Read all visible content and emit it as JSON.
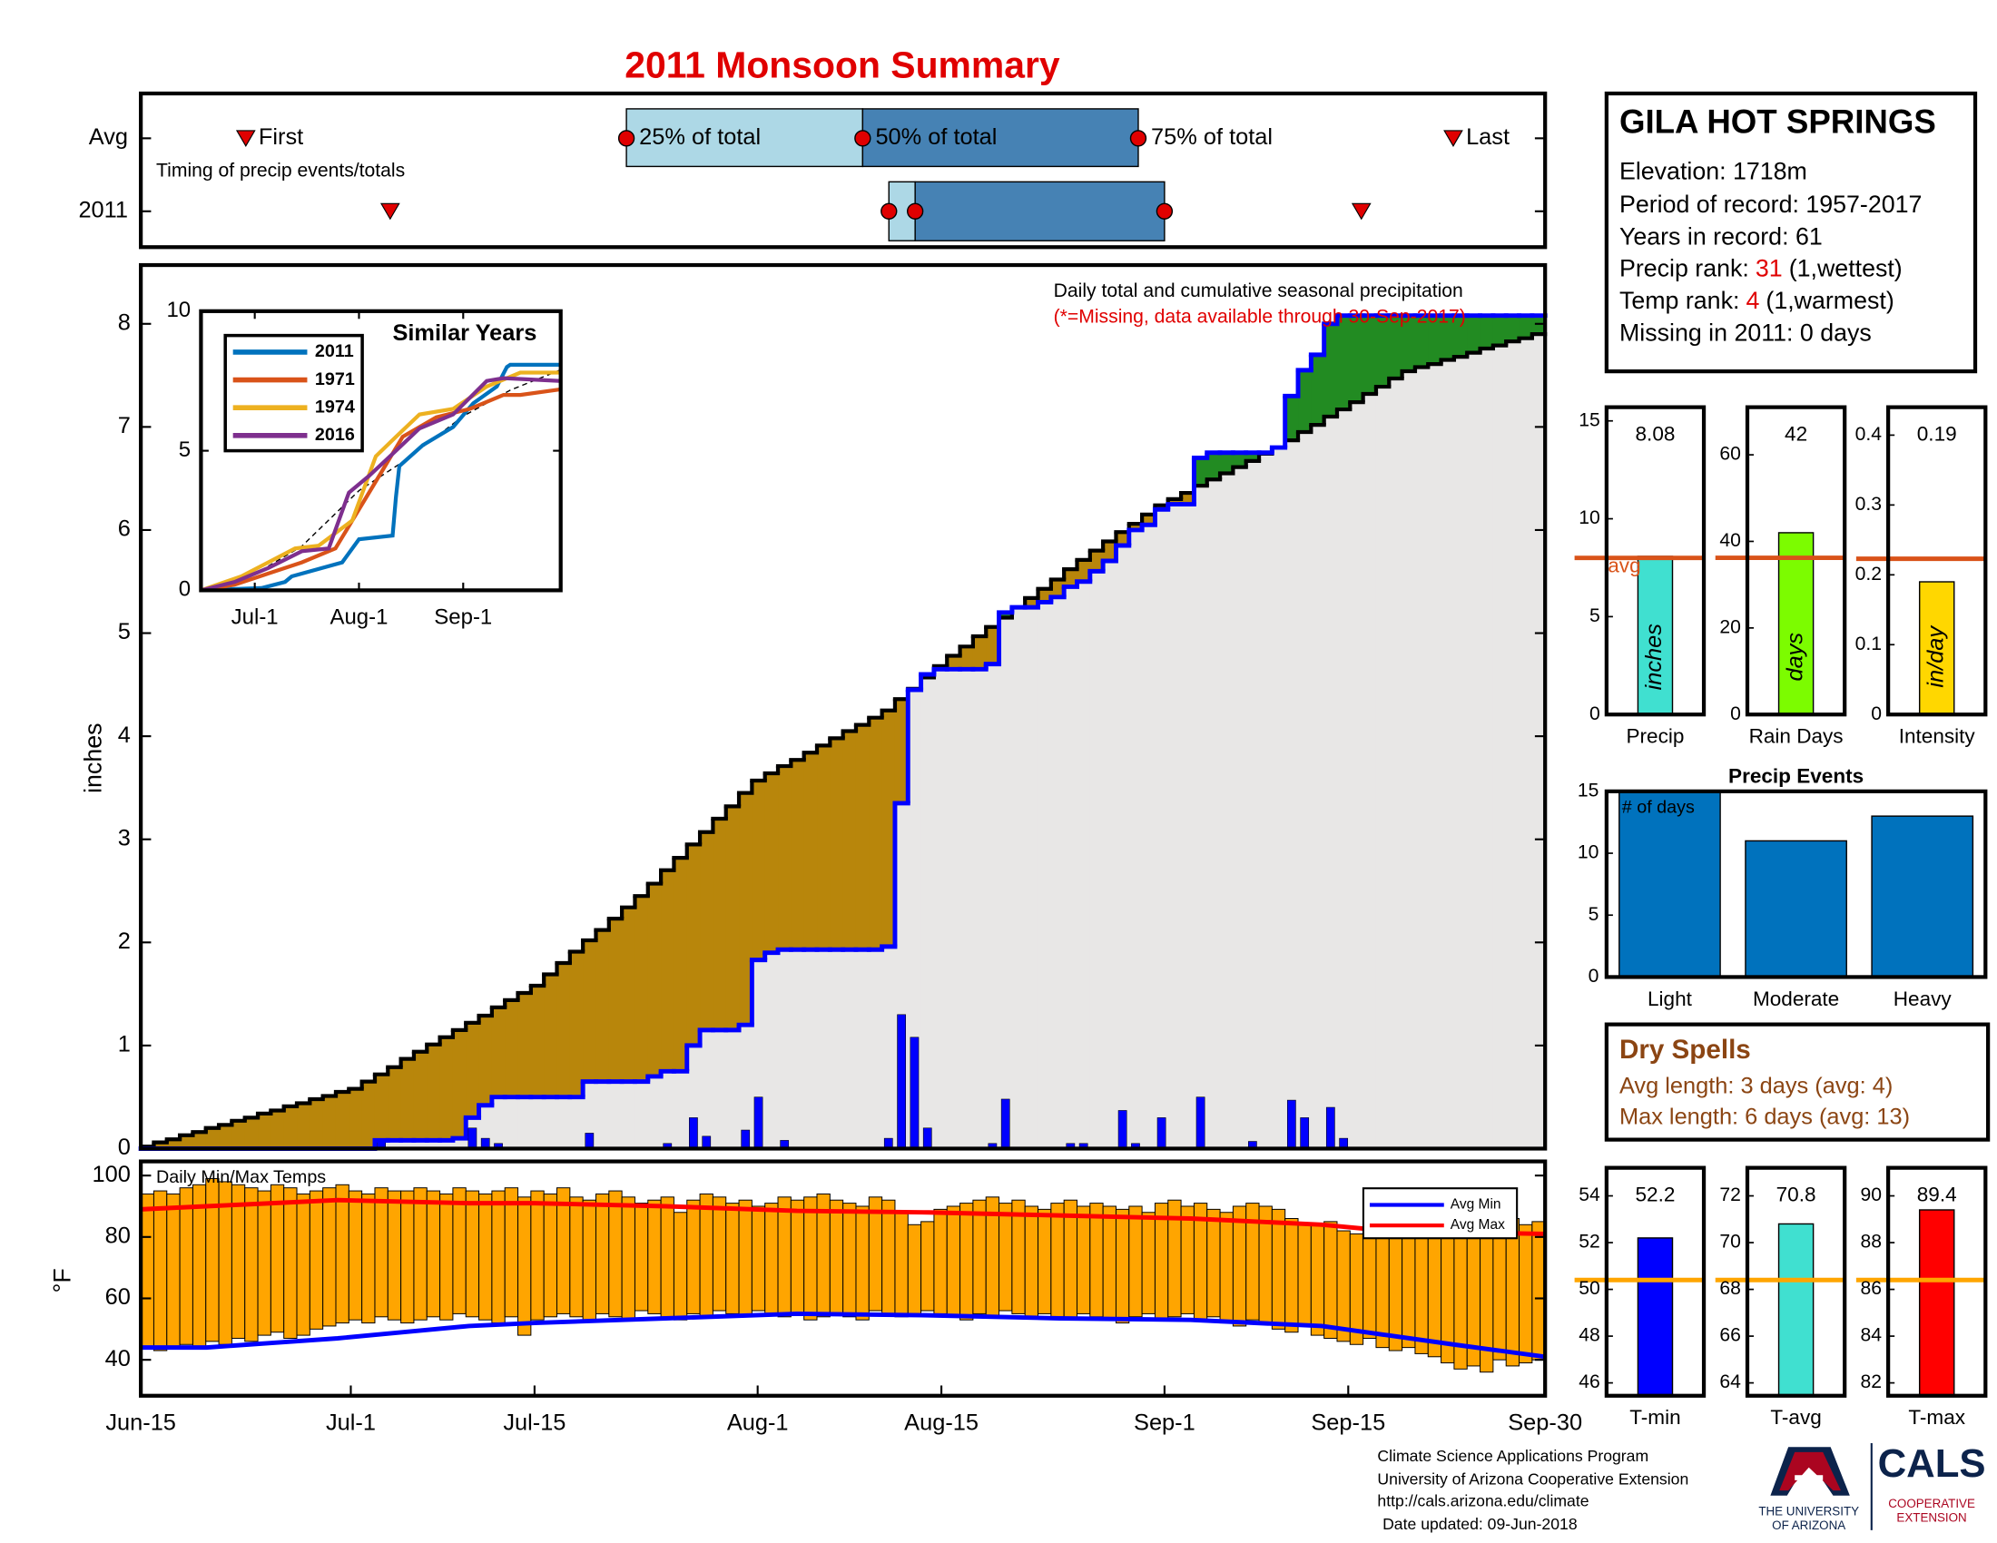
{
  "title": "2011 Monsoon Summary",
  "station": {
    "name": "GILA HOT SPRINGS",
    "elevation": "Elevation: 1718m",
    "period": "Period of record: 1957-2017",
    "years": "Years in record: 61",
    "precip_rank": {
      "label": "Precip rank:",
      "value": 31,
      "note": "(1,wettest)"
    },
    "temp_rank": {
      "label": "Temp rank:",
      "value": 4,
      "note": "(1,warmest)"
    },
    "missing": "Missing in 2011: 0 days"
  },
  "dry_spells": {
    "title": "Dry Spells",
    "lines": [
      "Avg length: 3 days (avg: 4)",
      "Max length: 6 days (avg: 13)"
    ]
  },
  "footer": [
    "Climate Science Applications Program",
    "University of Arizona Cooperative Extension",
    "http://cals.arizona.edu/climate",
    "Date updated: 09-Jun-2018"
  ],
  "logos": {
    "university": [
      "THE UNIVERSITY",
      "OF ARIZONA"
    ],
    "cals": "CALS",
    "extension": [
      "COOPERATIVE",
      "EXTENSION"
    ]
  },
  "chart_data": [
    {
      "type": "timing",
      "note": "Timing of precip events/totals",
      "xlim": [
        0,
        107
      ],
      "colors": [
        "#add8e6",
        "#4682b4",
        "#e00000"
      ],
      "labels": {
        "first": "First",
        "p25": "25% of total",
        "p50": "50% of total",
        "p75": "75% of total",
        "last": "Last"
      },
      "rows": [
        {
          "name": "Avg",
          "first": 8,
          "p25": 37,
          "p50": 55,
          "p75": 76,
          "last": 100
        },
        {
          "name": "2011",
          "first": 19,
          "p25": 57,
          "p50": 59,
          "p75": 78,
          "last": 93
        }
      ]
    },
    {
      "type": "cumulative",
      "annotation": "Daily total and cumulative seasonal precipitation",
      "missing_note": "(*=Missing, data available through 30-Sep-2017)",
      "ylabel": "inches",
      "xlim": [
        0,
        107
      ],
      "ylim": [
        0,
        8.57
      ],
      "yticks": [
        0,
        1,
        2,
        3,
        4,
        5,
        6,
        7,
        8
      ],
      "colors": {
        "below": "#b8860b",
        "above": "#228b22",
        "base": "#e8e7e6"
      },
      "average": {
        "color": "#000000",
        "values": [
          0.02,
          0.06,
          0.09,
          0.13,
          0.16,
          0.2,
          0.23,
          0.27,
          0.3,
          0.34,
          0.37,
          0.41,
          0.44,
          0.48,
          0.51,
          0.55,
          0.58,
          0.65,
          0.72,
          0.79,
          0.87,
          0.94,
          1.01,
          1.08,
          1.15,
          1.22,
          1.29,
          1.37,
          1.44,
          1.51,
          1.58,
          1.69,
          1.8,
          1.91,
          2.02,
          2.12,
          2.23,
          2.34,
          2.45,
          2.57,
          2.7,
          2.82,
          2.95,
          3.07,
          3.2,
          3.32,
          3.45,
          3.57,
          3.64,
          3.71,
          3.77,
          3.84,
          3.91,
          3.98,
          4.05,
          4.11,
          4.18,
          4.25,
          4.36,
          4.46,
          4.57,
          4.68,
          4.78,
          4.87,
          4.97,
          5.06,
          5.15,
          5.25,
          5.34,
          5.43,
          5.52,
          5.62,
          5.71,
          5.8,
          5.89,
          5.98,
          6.06,
          6.15,
          6.24,
          6.3,
          6.36,
          6.43,
          6.49,
          6.55,
          6.61,
          6.67,
          6.74,
          6.8,
          6.87,
          6.95,
          7.02,
          7.1,
          7.17,
          7.24,
          7.32,
          7.39,
          7.47,
          7.54,
          7.58,
          7.61,
          7.65,
          7.68,
          7.72,
          7.76,
          7.79,
          7.83,
          7.86,
          7.9
        ]
      },
      "observed": {
        "color": "#0000ff",
        "values": [
          0,
          0,
          0,
          0,
          0,
          0,
          0,
          0,
          0,
          0,
          0,
          0,
          0,
          0,
          0,
          0,
          0,
          0,
          0.08,
          0.08,
          0.08,
          0.08,
          0.08,
          0.08,
          0.1,
          0.3,
          0.42,
          0.5,
          0.5,
          0.5,
          0.5,
          0.5,
          0.5,
          0.5,
          0.65,
          0.65,
          0.65,
          0.65,
          0.65,
          0.7,
          0.75,
          0.75,
          1.0,
          1.15,
          1.15,
          1.15,
          1.2,
          1.83,
          1.9,
          1.93,
          1.93,
          1.93,
          1.93,
          1.93,
          1.93,
          1.93,
          1.93,
          1.96,
          3.35,
          4.45,
          4.6,
          4.65,
          4.65,
          4.65,
          4.65,
          4.7,
          5.2,
          5.25,
          5.25,
          5.3,
          5.35,
          5.45,
          5.5,
          5.6,
          5.7,
          5.85,
          6.0,
          6.05,
          6.2,
          6.25,
          6.25,
          6.7,
          6.75,
          6.75,
          6.75,
          6.75,
          6.75,
          6.8,
          7.3,
          7.55,
          7.7,
          8.0,
          8.08,
          8.08,
          8.08,
          8.08,
          8.08,
          8.08,
          8.08,
          8.08,
          8.08,
          8.08,
          8.08,
          8.08,
          8.08,
          8.08,
          8.08,
          8.08
        ]
      },
      "daily": {
        "color": "#0000ff",
        "values": [
          0,
          0,
          0,
          0,
          0,
          0,
          0,
          0,
          0,
          0,
          0,
          0,
          0,
          0,
          0,
          0,
          0,
          0,
          0.08,
          0,
          0,
          0,
          0,
          0,
          0,
          0.2,
          0.1,
          0.05,
          0,
          0,
          0,
          0,
          0,
          0,
          0.15,
          0,
          0,
          0,
          0,
          0,
          0.05,
          0,
          0.3,
          0.12,
          0,
          0,
          0.18,
          0.5,
          0,
          0.08,
          0,
          0,
          0,
          0,
          0,
          0,
          0,
          0.1,
          1.3,
          1.08,
          0.2,
          0,
          0,
          0,
          0,
          0.05,
          0.48,
          0,
          0,
          0,
          0,
          0.05,
          0.05,
          0,
          0,
          0.37,
          0.05,
          0,
          0.3,
          0,
          0,
          0.5,
          0,
          0,
          0,
          0.07,
          0,
          0,
          0.47,
          0.3,
          0,
          0.4,
          0.1,
          0,
          0,
          0,
          0,
          0,
          0,
          0,
          0,
          0,
          0,
          0,
          0,
          0,
          0,
          0
        ]
      }
    },
    {
      "type": "line",
      "title": "Similar Years",
      "xlim": [
        0,
        107
      ],
      "xticks": [
        {
          "value": 16,
          "label": "Jul-1"
        },
        {
          "value": 47,
          "label": "Aug-1"
        },
        {
          "value": 78,
          "label": "Sep-1"
        }
      ],
      "ylim": [
        0,
        10
      ],
      "yticks": [
        0,
        5,
        10
      ],
      "series": [
        {
          "name": "2011",
          "color": "#0072bd",
          "x": [
            0,
            18,
            25,
            27,
            42,
            47,
            57,
            58,
            59,
            66,
            75,
            81,
            88,
            91,
            92,
            107
          ],
          "values": [
            0,
            0.08,
            0.3,
            0.5,
            1.0,
            1.83,
            1.96,
            3.35,
            4.45,
            5.2,
            5.85,
            6.7,
            7.3,
            8.0,
            8.08,
            8.08
          ]
        },
        {
          "name": "1971",
          "color": "#d95319",
          "x": [
            0,
            10,
            20,
            30,
            40,
            45,
            50,
            55,
            60,
            70,
            80,
            90,
            95,
            107
          ],
          "values": [
            0,
            0.2,
            0.6,
            1.0,
            1.5,
            2.5,
            3.5,
            4.5,
            5.5,
            6.2,
            6.5,
            7.0,
            7.0,
            7.2
          ]
        },
        {
          "name": "1974",
          "color": "#edb120",
          "x": [
            0,
            12,
            20,
            28,
            35,
            45,
            52,
            58,
            65,
            75,
            85,
            95,
            107
          ],
          "values": [
            0,
            0.5,
            1.0,
            1.5,
            1.6,
            2.5,
            4.8,
            5.5,
            6.3,
            6.5,
            7.3,
            7.8,
            7.8
          ]
        },
        {
          "name": "2016",
          "color": "#7e2f8e",
          "x": [
            0,
            10,
            20,
            30,
            38,
            44,
            50,
            58,
            65,
            75,
            85,
            90,
            107
          ],
          "values": [
            0,
            0.3,
            0.8,
            1.4,
            1.5,
            3.5,
            4.1,
            5.0,
            5.8,
            6.3,
            7.5,
            7.6,
            7.5
          ]
        }
      ],
      "average": {
        "color": "#000000",
        "x": [
          0,
          16,
          30,
          47,
          61,
          78,
          92,
          107
        ],
        "values": [
          0.02,
          0.58,
          1.58,
          3.57,
          4.68,
          6.24,
          7.17,
          7.9
        ]
      }
    },
    {
      "type": "minmax",
      "title": "Daily Min/Max Temps",
      "ylabel": "°F",
      "xlim": [
        0,
        107
      ],
      "xticks": [
        {
          "value": 0,
          "label": "Jun-15"
        },
        {
          "value": 16,
          "label": "Jul-1"
        },
        {
          "value": 30,
          "label": "Jul-15"
        },
        {
          "value": 47,
          "label": "Aug-1"
        },
        {
          "value": 61,
          "label": "Aug-15"
        },
        {
          "value": 78,
          "label": "Sep-1"
        },
        {
          "value": 92,
          "label": "Sep-15"
        },
        {
          "value": 107,
          "label": "Sep-30"
        }
      ],
      "ylim": [
        28.3,
        104.6
      ],
      "yticks": [
        40,
        60,
        80,
        100
      ],
      "color": "#ffa500",
      "max": [
        94,
        95,
        94,
        96,
        97,
        99,
        98,
        97,
        96,
        95,
        97,
        96,
        94,
        95,
        96,
        97,
        95,
        94,
        96,
        95,
        95,
        96,
        95,
        94,
        96,
        95,
        94,
        95,
        96,
        93,
        95,
        94,
        96,
        93,
        92,
        94,
        95,
        93,
        91,
        92,
        93,
        88,
        92,
        94,
        93,
        91,
        92,
        90,
        91,
        93,
        92,
        93,
        94,
        92,
        91,
        90,
        93,
        92,
        88,
        84,
        85,
        89,
        90,
        91,
        92,
        93,
        91,
        92,
        90,
        89,
        91,
        92,
        90,
        91,
        90,
        89,
        90,
        88,
        91,
        92,
        90,
        91,
        89,
        88,
        90,
        91,
        90,
        89,
        86,
        84,
        84,
        85,
        82,
        81,
        86,
        84,
        82,
        83,
        85,
        83,
        82,
        80,
        84,
        83,
        85,
        86,
        84,
        85
      ],
      "min": [
        44,
        43,
        44,
        45,
        44,
        46,
        45,
        47,
        46,
        48,
        49,
        47,
        48,
        50,
        51,
        52,
        53,
        52,
        54,
        53,
        52,
        53,
        54,
        53,
        55,
        54,
        53,
        52,
        54,
        48,
        53,
        54,
        55,
        54,
        53,
        55,
        54,
        53,
        56,
        55,
        54,
        53,
        55,
        54,
        56,
        55,
        54,
        56,
        55,
        54,
        55,
        53,
        54,
        55,
        54,
        53,
        56,
        55,
        54,
        55,
        56,
        55,
        54,
        53,
        55,
        54,
        56,
        55,
        54,
        55,
        54,
        53,
        55,
        54,
        53,
        52,
        54,
        55,
        53,
        54,
        55,
        53,
        54,
        52,
        51,
        53,
        52,
        50,
        49,
        51,
        48,
        47,
        46,
        45,
        47,
        44,
        43,
        44,
        42,
        41,
        39,
        37,
        38,
        36,
        40,
        38,
        39,
        40
      ],
      "series": [
        {
          "name": "Avg Min",
          "color": "#0000ff",
          "x": [
            0,
            5,
            10,
            15,
            20,
            25,
            30,
            40,
            50,
            60,
            70,
            80,
            90,
            95,
            100,
            107
          ],
          "values": [
            44,
            44,
            45.5,
            47,
            49,
            51,
            52,
            53.5,
            55,
            54.5,
            53.5,
            53,
            51,
            48,
            45,
            41
          ]
        },
        {
          "name": "Avg Max",
          "color": "#ff0000",
          "x": [
            0,
            5,
            10,
            15,
            20,
            25,
            30,
            40,
            50,
            60,
            70,
            80,
            90,
            95,
            100,
            107
          ],
          "values": [
            89,
            90,
            91,
            92,
            91.5,
            91,
            91,
            90,
            88.5,
            88,
            87,
            86,
            84,
            82,
            81.5,
            81
          ]
        }
      ]
    },
    {
      "type": "stat",
      "category": "Precip",
      "unit": "inches",
      "value": 8.08,
      "avg": 8.0,
      "avg_label": "avg",
      "color": "#40e0d0",
      "avg_color": "#d95319",
      "ylim": [
        0,
        15.7
      ],
      "yticks": [
        0,
        5,
        10,
        15
      ]
    },
    {
      "type": "stat",
      "category": "Rain Days",
      "unit": "days",
      "value": 42,
      "avg": 36.2,
      "color": "#7cfc00",
      "avg_color": "#d95319",
      "ylim": [
        0,
        71
      ],
      "yticks": [
        0,
        20,
        40,
        60
      ]
    },
    {
      "type": "stat",
      "category": "Intensity",
      "unit": "in/day",
      "value": 0.19,
      "avg": 0.223,
      "color": "#ffd700",
      "avg_color": "#d95319",
      "ylim": [
        0,
        0.44
      ],
      "yticks": [
        0,
        0.1,
        0.2,
        0.3,
        0.4
      ]
    },
    {
      "type": "bar",
      "title": "Precip Events",
      "annotation": "# of days",
      "categories": [
        "Light",
        "Moderate",
        "Heavy"
      ],
      "values": [
        15,
        11,
        13
      ],
      "color": "#0072bd",
      "ylim": [
        0,
        15
      ],
      "yticks": [
        0,
        5,
        10,
        15
      ]
    },
    {
      "type": "stat",
      "category": "T-min",
      "value": 52.2,
      "avg": 50.4,
      "color": "#0000ff",
      "avg_color": "#ffa500",
      "ylim": [
        45.45,
        55.2
      ],
      "yticks": [
        46,
        48,
        50,
        52,
        54
      ]
    },
    {
      "type": "stat",
      "category": "T-avg",
      "value": 70.8,
      "avg": 68.4,
      "color": "#40e0d0",
      "avg_color": "#ffa500",
      "ylim": [
        63.45,
        73.2
      ],
      "yticks": [
        64,
        66,
        68,
        70,
        72
      ]
    },
    {
      "type": "stat",
      "category": "T-max",
      "value": 89.4,
      "avg": 86.4,
      "color": "#ff0000",
      "avg_color": "#ffa500",
      "ylim": [
        81.45,
        91.2
      ],
      "yticks": [
        82,
        84,
        86,
        88,
        90
      ]
    }
  ]
}
